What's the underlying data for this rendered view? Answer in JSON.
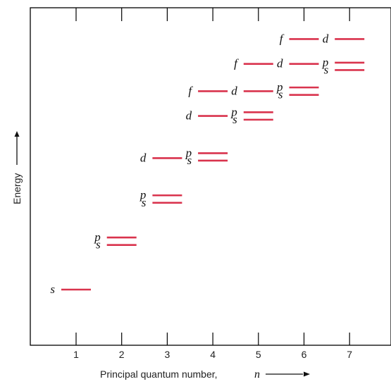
{
  "chart_data": {
    "type": "diagram",
    "xlabel": "Principal quantum number,",
    "xlabel_variable": "n",
    "ylabel": "Energy",
    "x_ticks": [
      "1",
      "2",
      "3",
      "4",
      "5",
      "6",
      "7"
    ],
    "xlim": [
      0,
      8
    ],
    "line_color": "#d9334d",
    "levels": [
      {
        "n": 1,
        "sublevel": "s",
        "energy": 1.0
      },
      {
        "n": 2,
        "sublevel": "s",
        "energy": 2.8
      },
      {
        "n": 2,
        "sublevel": "p",
        "energy": 3.1
      },
      {
        "n": 3,
        "sublevel": "s",
        "energy": 4.5
      },
      {
        "n": 3,
        "sublevel": "p",
        "energy": 4.8
      },
      {
        "n": 3,
        "sublevel": "d",
        "energy": 6.3
      },
      {
        "n": 4,
        "sublevel": "s",
        "energy": 6.2
      },
      {
        "n": 4,
        "sublevel": "p",
        "energy": 6.5
      },
      {
        "n": 4,
        "sublevel": "d",
        "energy": 8.0
      },
      {
        "n": 4,
        "sublevel": "f",
        "energy": 9.0
      },
      {
        "n": 5,
        "sublevel": "s",
        "energy": 7.85
      },
      {
        "n": 5,
        "sublevel": "p",
        "energy": 8.15
      },
      {
        "n": 5,
        "sublevel": "d",
        "energy": 9.0
      },
      {
        "n": 5,
        "sublevel": "f",
        "energy": 10.1
      },
      {
        "n": 6,
        "sublevel": "s",
        "energy": 8.85
      },
      {
        "n": 6,
        "sublevel": "p",
        "energy": 9.15
      },
      {
        "n": 6,
        "sublevel": "d",
        "energy": 10.1
      },
      {
        "n": 6,
        "sublevel": "f",
        "energy": 11.1
      },
      {
        "n": 7,
        "sublevel": "s",
        "energy": 9.85
      },
      {
        "n": 7,
        "sublevel": "p",
        "energy": 10.15
      },
      {
        "n": 7,
        "sublevel": "d",
        "energy": 11.1
      }
    ]
  }
}
